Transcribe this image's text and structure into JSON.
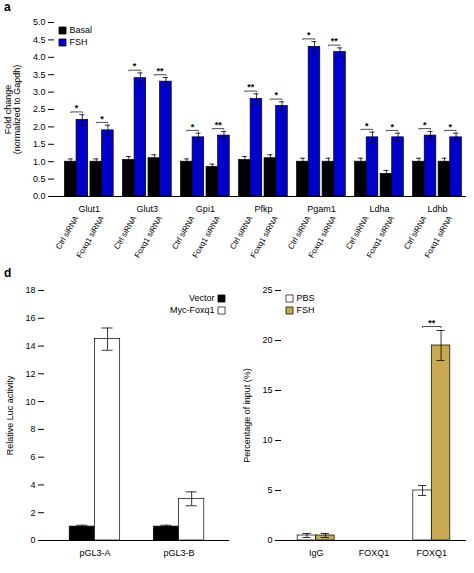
{
  "chart_data": [
    {
      "type": "bar",
      "title": "a",
      "categories": [
        "Glut1",
        "Glut3",
        "Gpi1",
        "Pfkp",
        "Pgam1",
        "Ldha",
        "Ldhb"
      ],
      "ylabel": "Fold change\n(normalized to Gapdh)",
      "ylim": [
        0,
        5
      ],
      "yticks": [
        {
          "value": 0,
          "label": "0.0"
        },
        0.5,
        {
          "value": 1.0,
          "label": "1.0"
        },
        1.5,
        {
          "value": 2.0,
          "label": "2.0"
        },
        2.5,
        {
          "value": 3.0,
          "label": "3.0"
        },
        3.5,
        {
          "value": 4.0,
          "label": "4.0"
        },
        4.5,
        {
          "value": 5.0,
          "label": "5.0"
        }
      ],
      "legend": "upper left",
      "series": [
        {
          "name": "Basal",
          "subgroup": "Ctrl siRNA",
          "color": "#000000",
          "values": [
            1.0,
            1.05,
            1.0,
            1.05,
            1.0,
            1.0,
            1.0
          ],
          "errors": [
            0.08,
            0.1,
            0.08,
            0.1,
            0.1,
            0.1,
            0.1
          ]
        },
        {
          "name": "FSH",
          "subgroup": "Ctrl siRNA",
          "color": "#0000cc",
          "values": [
            2.2,
            3.4,
            1.7,
            2.8,
            4.3,
            1.7,
            1.75
          ],
          "errors": [
            0.15,
            0.15,
            0.12,
            0.15,
            0.15,
            0.15,
            0.12
          ],
          "significance": [
            "*",
            "*",
            "*",
            "**",
            "*",
            "*",
            "*"
          ]
        },
        {
          "name": "Basal",
          "subgroup": "Foxq1 siRNA",
          "color": "#000000",
          "values": [
            1.0,
            1.1,
            0.85,
            1.1,
            1.0,
            0.65,
            1.0
          ],
          "errors": [
            0.08,
            0.1,
            0.08,
            0.1,
            0.1,
            0.1,
            0.1
          ]
        },
        {
          "name": "FSH",
          "subgroup": "Foxq1 siRNA",
          "color": "#0000cc",
          "values": [
            1.9,
            3.3,
            1.75,
            2.6,
            4.15,
            1.7,
            1.7
          ],
          "errors": [
            0.15,
            0.12,
            0.12,
            0.12,
            0.12,
            0.12,
            0.12
          ],
          "significance": [
            "*",
            "**",
            "**",
            "*",
            "**",
            "*",
            "*"
          ]
        }
      ]
    },
    {
      "type": "bar",
      "title": "d",
      "categories": [
        "pGL3-A",
        "pGL3-B"
      ],
      "ylabel": "Relative Luc activity",
      "ylim": [
        0,
        18
      ],
      "yticks": [
        0,
        2,
        4,
        6,
        8,
        10,
        12,
        14,
        16,
        18
      ],
      "legend": "upper right",
      "series": [
        {
          "name": "Vector",
          "color": "#000000",
          "values": [
            1.0,
            1.0
          ],
          "errors": [
            0.1,
            0.1
          ]
        },
        {
          "name": "Myc-Foxq1",
          "color": "#ffffff",
          "values": [
            14.5,
            3.0
          ],
          "errors": [
            0.8,
            0.5
          ]
        }
      ]
    },
    {
      "type": "bar",
      "categories": [
        "IgG",
        "FOXQ1",
        "FOXQ1"
      ],
      "ylabel": "Percentage of input (%)",
      "ylim": [
        0,
        25
      ],
      "yticks": [
        0,
        5,
        10,
        15,
        20,
        25
      ],
      "legend": "upper left",
      "series": [
        {
          "name": "PBS",
          "color": "#ffffff",
          "values": [
            0.5,
            0.0,
            5.0
          ],
          "errors": [
            0.2,
            0.0,
            0.5
          ]
        },
        {
          "name": "FSH",
          "color": "#c8a850",
          "values": [
            0.5,
            0.0,
            19.5
          ],
          "errors": [
            0.2,
            0.0,
            1.5
          ],
          "significance": [
            null,
            null,
            "**"
          ]
        }
      ]
    }
  ]
}
